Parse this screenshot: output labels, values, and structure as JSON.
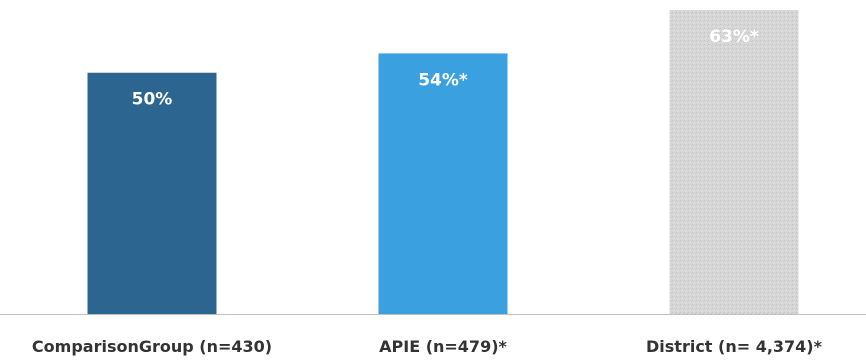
{
  "chart_data": {
    "type": "bar",
    "categories": [
      "ComparisonGroup (n=430)",
      "APIE (n=479)*",
      "District (n= 4,374)*"
    ],
    "values": [
      50,
      54,
      63
    ],
    "data_labels": [
      "50%",
      "54%*",
      "63%*"
    ],
    "bar_colors": [
      "#2c6690",
      "#3aa0e0",
      "#d2d2d2"
    ],
    "bar_patterns": [
      "solid",
      "solid",
      "stippled"
    ],
    "title": "",
    "xlabel": "",
    "ylabel": "",
    "ylim": [
      0,
      63
    ],
    "axis_color": "#bfbfbf",
    "grid": false,
    "legend": "none"
  }
}
